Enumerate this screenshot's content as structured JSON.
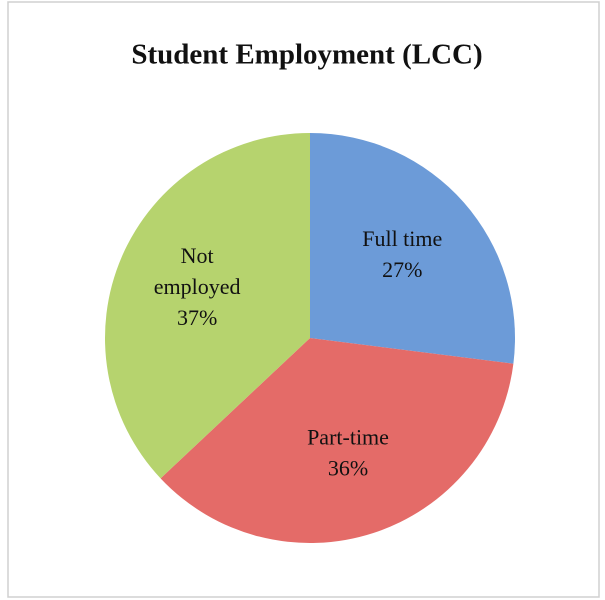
{
  "chart_data": {
    "type": "pie",
    "title": "Student Employment (LCC)",
    "categories": [
      "Full time",
      "Part-time",
      "Not employed"
    ],
    "values": [
      27,
      36,
      37
    ],
    "value_labels": [
      "27%",
      "36%",
      "37%"
    ],
    "colors": [
      "#6c9bd8",
      "#e46b68",
      "#b6d36e"
    ]
  }
}
